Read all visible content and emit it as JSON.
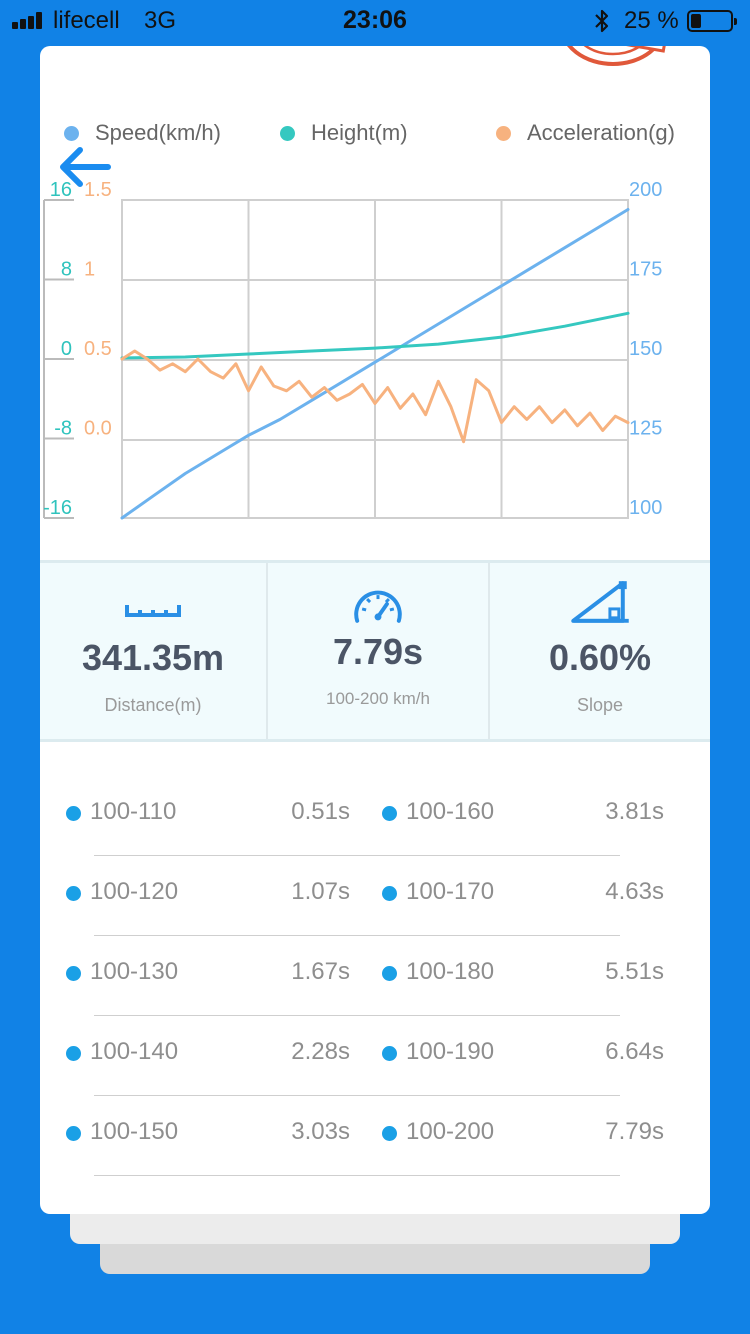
{
  "status_bar": {
    "carrier": "lifecell",
    "network": "3G",
    "time": "23:06",
    "battery": "25 %",
    "battery_level": 0.25
  },
  "chart_data": {
    "type": "line",
    "legend": [
      {
        "name": "Speed(km/h)",
        "color": "#6cb2ee"
      },
      {
        "name": "Height(m)",
        "color": "#35c8c0"
      },
      {
        "name": "Acceleration(g)",
        "color": "#f7b27f"
      }
    ],
    "legend_position": "top",
    "grid": true,
    "axes": {
      "height": {
        "side": "left-outer",
        "ticks": [
          "16",
          "8",
          "0",
          "-8",
          "-16"
        ],
        "range": [
          -16,
          16
        ],
        "color": "#2fc3bd"
      },
      "acceleration": {
        "side": "left-inner",
        "ticks": [
          "1.5",
          "1",
          "0.5",
          "0.0"
        ],
        "range": [
          -0.5,
          1.5
        ],
        "color": "#f7b27f"
      },
      "speed": {
        "side": "right",
        "ticks": [
          "200",
          "175",
          "150",
          "125",
          "100"
        ],
        "range": [
          100,
          200
        ],
        "color": "#6cb2ee"
      }
    },
    "x_range": [
      0,
      8
    ],
    "series": [
      {
        "name": "Speed(km/h)",
        "axis": "speed",
        "color": "#6cb2ee",
        "x": [
          0,
          0.5,
          1,
          1.5,
          2,
          2.5,
          3,
          3.5,
          4,
          4.5,
          5,
          5.5,
          6,
          6.5,
          7,
          7.5,
          8
        ],
        "y": [
          100,
          107,
          114,
          120,
          126,
          131,
          137,
          143,
          149,
          155,
          161,
          167,
          173,
          179,
          185,
          191,
          197
        ]
      },
      {
        "name": "Height(m)",
        "axis": "height",
        "color": "#35c8c0",
        "x": [
          0,
          1,
          2,
          3,
          4,
          5,
          6,
          7,
          8
        ],
        "y": [
          0.1,
          0.2,
          0.5,
          0.8,
          1.1,
          1.5,
          2.2,
          3.3,
          4.6
        ]
      },
      {
        "name": "Acceleration(g)",
        "axis": "acceleration",
        "color": "#f7b27f",
        "x": [
          0,
          0.2,
          0.4,
          0.6,
          0.8,
          1.0,
          1.2,
          1.4,
          1.6,
          1.8,
          2.0,
          2.2,
          2.4,
          2.6,
          2.8,
          3.0,
          3.2,
          3.4,
          3.6,
          3.8,
          4.0,
          4.2,
          4.4,
          4.6,
          4.8,
          5.0,
          5.2,
          5.4,
          5.6,
          5.8,
          6.0,
          6.2,
          6.4,
          6.6,
          6.8,
          7.0,
          7.2,
          7.4,
          7.6,
          7.8,
          8.0
        ],
        "y": [
          0.5,
          0.55,
          0.5,
          0.43,
          0.47,
          0.42,
          0.5,
          0.42,
          0.38,
          0.47,
          0.3,
          0.45,
          0.33,
          0.3,
          0.36,
          0.26,
          0.32,
          0.24,
          0.28,
          0.34,
          0.22,
          0.32,
          0.19,
          0.28,
          0.15,
          0.36,
          0.2,
          -0.02,
          0.37,
          0.3,
          0.1,
          0.2,
          0.12,
          0.2,
          0.1,
          0.18,
          0.08,
          0.16,
          0.05,
          0.14,
          0.1
        ]
      }
    ]
  },
  "stats": [
    {
      "icon": "ruler-icon",
      "value": "341.35m",
      "label": "Distance(m)"
    },
    {
      "icon": "speedometer-icon",
      "value": "7.79s",
      "label": "100-200 km/h"
    },
    {
      "icon": "slope-icon",
      "value": "0.60%",
      "label": "Slope"
    }
  ],
  "splits": [
    {
      "left": {
        "range": "100-110",
        "time": "0.51s"
      },
      "right": {
        "range": "100-160",
        "time": "3.81s"
      }
    },
    {
      "left": {
        "range": "100-120",
        "time": "1.07s"
      },
      "right": {
        "range": "100-170",
        "time": "4.63s"
      }
    },
    {
      "left": {
        "range": "100-130",
        "time": "1.67s"
      },
      "right": {
        "range": "100-180",
        "time": "5.51s"
      }
    },
    {
      "left": {
        "range": "100-140",
        "time": "2.28s"
      },
      "right": {
        "range": "100-190",
        "time": "6.64s"
      }
    },
    {
      "left": {
        "range": "100-150",
        "time": "3.03s"
      },
      "right": {
        "range": "100-200",
        "time": "7.79s"
      }
    }
  ]
}
